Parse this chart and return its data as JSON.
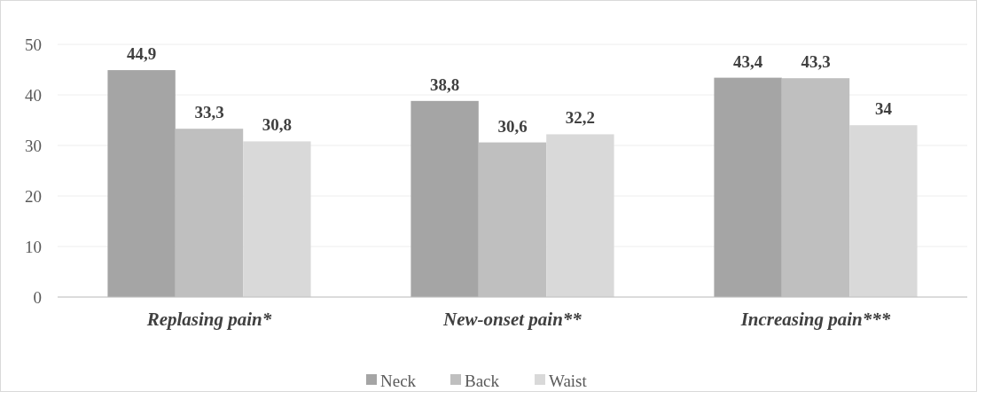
{
  "chart_data": {
    "type": "bar",
    "categories": [
      "Replasing pain*",
      "New-onset pain**",
      "Increasing pain***"
    ],
    "series": [
      {
        "name": "Neck",
        "color": "#a5a5a5",
        "values": [
          44.9,
          38.8,
          43.4
        ],
        "value_labels": [
          "44,9",
          "38,8",
          "43,4"
        ]
      },
      {
        "name": "Back",
        "color": "#bfbfbf",
        "values": [
          33.3,
          30.6,
          43.3
        ],
        "value_labels": [
          "33,3",
          "30,6",
          "43,3"
        ]
      },
      {
        "name": "Waist",
        "color": "#d9d9d9",
        "values": [
          30.8,
          32.2,
          34
        ],
        "value_labels": [
          "30,8",
          "32,2",
          "34"
        ]
      }
    ],
    "ylim": [
      0,
      50
    ],
    "yticks": [
      0,
      10,
      20,
      30,
      40,
      50
    ],
    "grid": "y",
    "legend": "bottom"
  }
}
